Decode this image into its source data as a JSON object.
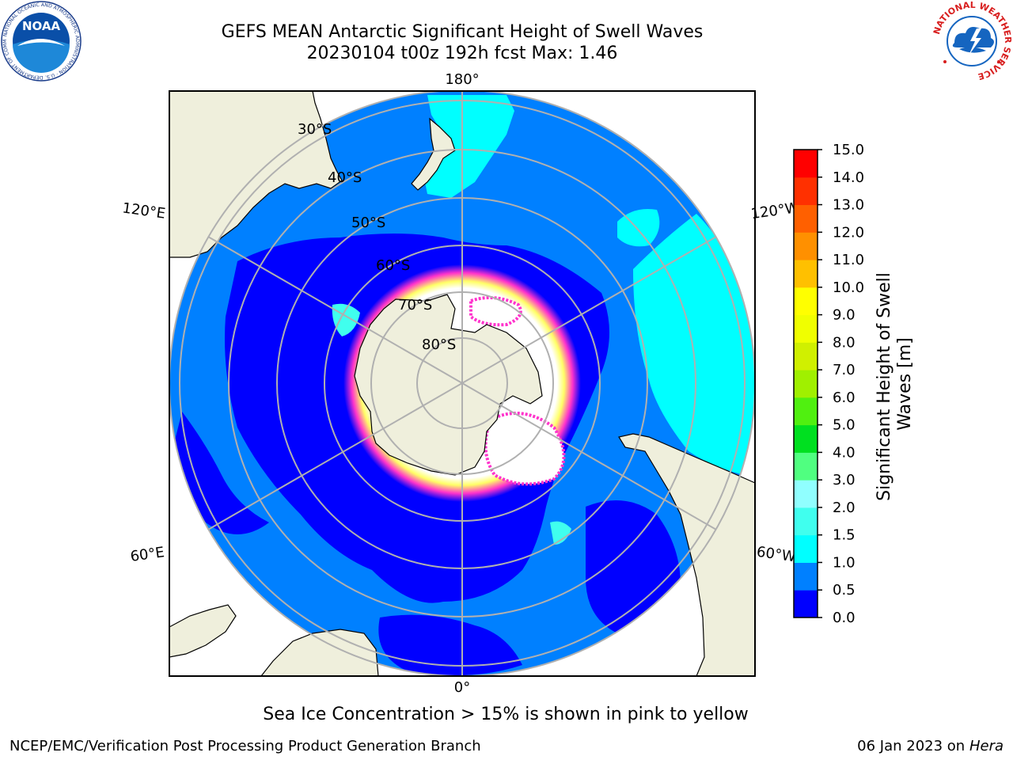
{
  "title": {
    "line1": "GEFS MEAN Antarctic Significant Height of Swell Waves",
    "line2": "20230104 t00z 192h fcst   Max: 1.46"
  },
  "map": {
    "projection": "south-polar-stereographic",
    "longitude_labels": [
      "180°",
      "120°E",
      "120°W",
      "60°E",
      "60°W",
      "0°"
    ],
    "latitude_labels": [
      "30°S",
      "40°S",
      "50°S",
      "60°S",
      "70°S",
      "80°S"
    ],
    "colors": {
      "land": "#efefdc",
      "coast": "#000000",
      "grid": "#b0b0b0",
      "ocean_outside": "#ffffff",
      "ice_low": "#ff33cc",
      "ice_high": "#ffff66"
    }
  },
  "colorbar": {
    "label_line1": "Significant Height of Swell",
    "label_line2": "Waves [m]",
    "ticks": [
      "0.0",
      "0.5",
      "1.0",
      "1.5",
      "2.0",
      "3.0",
      "4.0",
      "5.0",
      "6.0",
      "7.0",
      "8.0",
      "9.0",
      "10.0",
      "11.0",
      "12.0",
      "13.0",
      "14.0",
      "15.0"
    ],
    "colors": [
      "#0000ff",
      "#0080ff",
      "#00ffff",
      "#40ffee",
      "#90ffff",
      "#50ff80",
      "#00e020",
      "#50f010",
      "#a0f000",
      "#d0f000",
      "#f0ff00",
      "#ffff00",
      "#ffc000",
      "#ff9000",
      "#ff6000",
      "#ff3000",
      "#ff0000"
    ]
  },
  "caption": "Sea Ice Concentration > 15% is shown in pink to yellow",
  "footer": {
    "left": "NCEP/EMC/Verification Post Processing Product Generation Branch",
    "right_date": "06 Jan 2023 on ",
    "right_machine": "Hera"
  },
  "logos": {
    "noaa": "NOAA",
    "noaa_ring": "NATIONAL OCEANIC AND ATMOSPHERIC ADMINISTRATION · U.S. DEPARTMENT OF COMMERCE",
    "nws_ring": "NATIONAL WEATHER SERVICE"
  }
}
